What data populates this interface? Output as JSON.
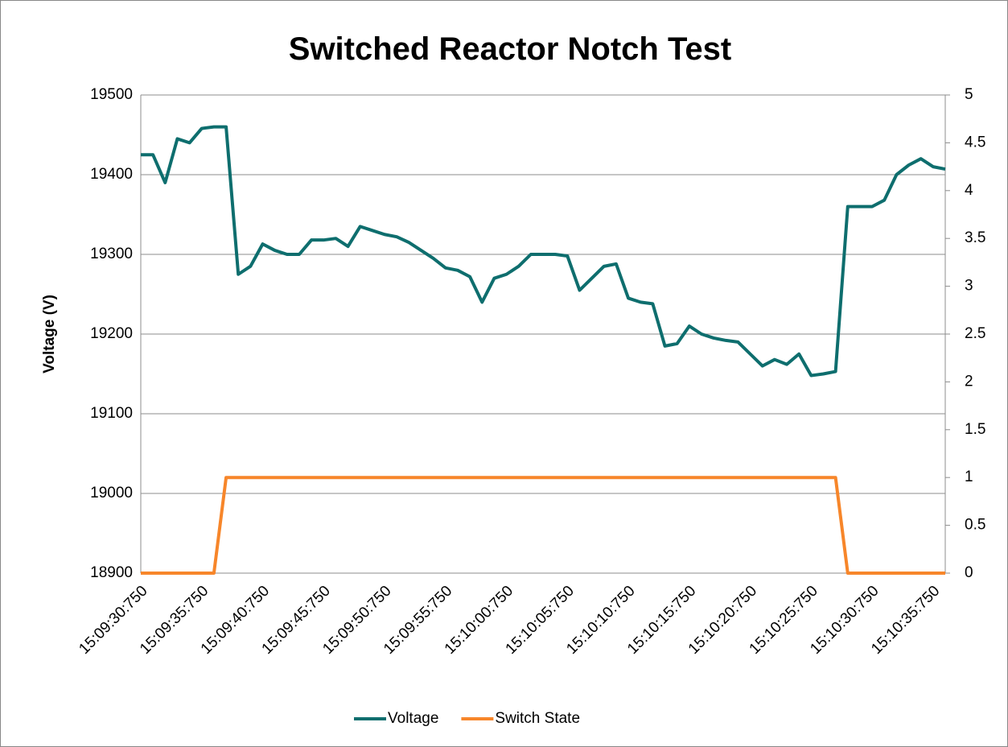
{
  "chart_data": {
    "type": "line",
    "title": "Switched Reactor Notch Test",
    "y_label": "Voltage (V)",
    "categories": [
      "15:09:30:750",
      null,
      null,
      null,
      null,
      "15:09:35:750",
      null,
      null,
      null,
      null,
      "15:09:40:750",
      null,
      null,
      null,
      null,
      "15:09:45:750",
      null,
      null,
      null,
      null,
      "15:09:50:750",
      null,
      null,
      null,
      null,
      "15:09:55:750",
      null,
      null,
      null,
      null,
      "15:10:00:750",
      null,
      null,
      null,
      null,
      "15:10:05:750",
      null,
      null,
      null,
      null,
      "15:10:10:750",
      null,
      null,
      null,
      null,
      "15:10:15:750",
      null,
      null,
      null,
      null,
      "15:10:20:750",
      null,
      null,
      null,
      null,
      "15:10:25:750",
      null,
      null,
      null,
      null,
      "15:10:30:750",
      null,
      null,
      null,
      null,
      "15:10:35:750",
      null
    ],
    "series": [
      {
        "name": "Voltage",
        "color": "#0e6e6e",
        "values": [
          19425,
          19425,
          19390,
          19445,
          19440,
          19458,
          19460,
          19460,
          19275,
          19285,
          19313,
          19305,
          19300,
          19300,
          19318,
          19318,
          19320,
          19310,
          19335,
          19330,
          19325,
          19322,
          19315,
          19305,
          19295,
          19283,
          19280,
          19272,
          19240,
          19270,
          19275,
          19285,
          19300,
          19300,
          19300,
          19298,
          19255,
          19270,
          19285,
          19288,
          19245,
          19240,
          19238,
          19185,
          19188,
          19210,
          19200,
          19195,
          19192,
          19190,
          19175,
          19160,
          19168,
          19162,
          19175,
          19148,
          19150,
          19153,
          19360,
          19360,
          19360,
          19368,
          19400,
          19412,
          19420,
          19410,
          19407
        ]
      },
      {
        "name": "Switch State",
        "color": "#f7862a",
        "axis": "y2",
        "values": [
          0,
          0,
          0,
          0,
          0,
          0,
          0,
          1,
          1,
          1,
          1,
          1,
          1,
          1,
          1,
          1,
          1,
          1,
          1,
          1,
          1,
          1,
          1,
          1,
          1,
          1,
          1,
          1,
          1,
          1,
          1,
          1,
          1,
          1,
          1,
          1,
          1,
          1,
          1,
          1,
          1,
          1,
          1,
          1,
          1,
          1,
          1,
          1,
          1,
          1,
          1,
          1,
          1,
          1,
          1,
          1,
          1,
          1,
          0,
          0,
          0,
          0,
          0,
          0,
          0,
          0,
          0
        ]
      }
    ],
    "ylim": [
      18900,
      19500
    ],
    "yticks": [
      18900,
      19000,
      19100,
      19200,
      19300,
      19400,
      19500
    ],
    "y2lim": [
      0,
      5
    ],
    "y2ticks": [
      0,
      0.5,
      1,
      1.5,
      2,
      2.5,
      3,
      3.5,
      4,
      4.5,
      5
    ],
    "grid": true,
    "legend": "bottom"
  }
}
